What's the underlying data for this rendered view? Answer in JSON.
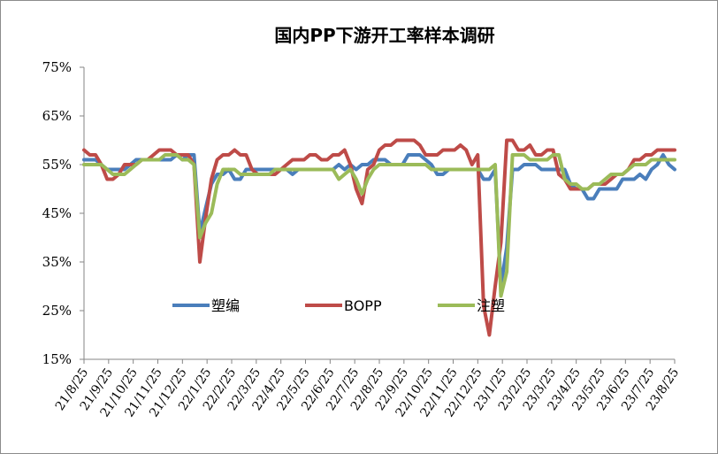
{
  "chart_data": {
    "type": "line",
    "title": "国内PP下游开工率样本调研",
    "xlabel": "",
    "ylabel": "",
    "ylim": [
      15,
      75
    ],
    "y_ticks": [
      "15%",
      "25%",
      "35%",
      "45%",
      "55%",
      "65%",
      "75%"
    ],
    "x_tick_labels": [
      "21/8/25",
      "21/9/25",
      "21/10/25",
      "21/11/25",
      "21/12/25",
      "22/1/25",
      "22/2/25",
      "22/3/25",
      "22/4/25",
      "22/5/25",
      "22/6/25",
      "22/7/25",
      "22/8/25",
      "22/9/25",
      "22/10/25",
      "22/11/25",
      "22/12/25",
      "23/1/25",
      "23/2/25",
      "23/3/25",
      "23/4/25",
      "23/5/25",
      "23/6/25",
      "23/7/25",
      "23/8/25"
    ],
    "x_start": "21/8/25",
    "x_end": "23/8/25",
    "grid": false,
    "legend_position": "bottom-left inside",
    "series": [
      {
        "name": "塑编",
        "color": "#4a7ebb",
        "values": [
          56,
          56,
          56,
          55,
          54,
          54,
          54,
          54,
          55,
          56,
          56,
          56,
          56,
          56,
          56,
          56,
          57,
          56,
          57,
          57,
          41,
          46,
          51,
          53,
          53,
          54,
          52,
          52,
          54,
          54,
          54,
          54,
          54,
          54,
          54,
          54,
          53,
          54,
          54,
          54,
          54,
          54,
          54,
          54,
          55,
          54,
          55,
          54,
          55,
          55,
          56,
          56,
          56,
          55,
          55,
          55,
          57,
          57,
          57,
          56,
          55,
          53,
          53,
          54,
          54,
          54,
          54,
          54,
          54,
          52,
          52,
          54,
          30,
          38,
          54,
          54,
          55,
          55,
          55,
          54,
          54,
          54,
          54,
          54,
          51,
          50,
          50,
          48,
          48,
          50,
          50,
          50,
          50,
          52,
          52,
          52,
          53,
          52,
          54,
          55,
          57,
          55,
          54
        ]
      },
      {
        "name": "BOPP",
        "color": "#be4b48",
        "values": [
          58,
          57,
          57,
          55,
          52,
          52,
          53,
          55,
          55,
          55,
          56,
          56,
          57,
          58,
          58,
          58,
          57,
          57,
          57,
          55,
          35,
          44,
          52,
          56,
          57,
          57,
          58,
          57,
          57,
          54,
          53,
          53,
          53,
          53,
          54,
          55,
          56,
          56,
          56,
          57,
          57,
          56,
          56,
          57,
          57,
          58,
          55,
          50,
          47,
          54,
          55,
          58,
          59,
          59,
          60,
          60,
          60,
          60,
          59,
          57,
          57,
          57,
          58,
          58,
          58,
          59,
          58,
          55,
          57,
          26,
          20,
          30,
          39,
          60,
          60,
          58,
          58,
          59,
          57,
          57,
          58,
          58,
          53,
          52,
          50,
          50,
          50,
          50,
          51,
          51,
          51,
          52,
          53,
          53,
          54,
          56,
          56,
          57,
          57,
          58,
          58,
          58,
          58
        ]
      },
      {
        "name": "注塑",
        "color": "#9bbb59",
        "values": [
          55,
          55,
          55,
          55,
          54,
          53,
          53,
          53,
          54,
          55,
          56,
          56,
          56,
          56,
          57,
          57,
          57,
          56,
          56,
          55,
          40,
          43,
          45,
          51,
          54,
          54,
          54,
          53,
          53,
          53,
          53,
          53,
          53,
          54,
          54,
          54,
          54,
          54,
          54,
          54,
          54,
          54,
          54,
          54,
          52,
          53,
          54,
          52,
          49,
          52,
          54,
          55,
          55,
          55,
          55,
          55,
          55,
          55,
          55,
          55,
          54,
          54,
          54,
          54,
          54,
          54,
          54,
          54,
          54,
          54,
          54,
          55,
          28,
          33,
          57,
          57,
          57,
          56,
          56,
          56,
          56,
          57,
          57,
          52,
          51,
          51,
          50,
          50,
          51,
          51,
          52,
          53,
          53,
          53,
          54,
          55,
          55,
          55,
          56,
          56,
          56,
          56,
          56
        ]
      }
    ]
  }
}
